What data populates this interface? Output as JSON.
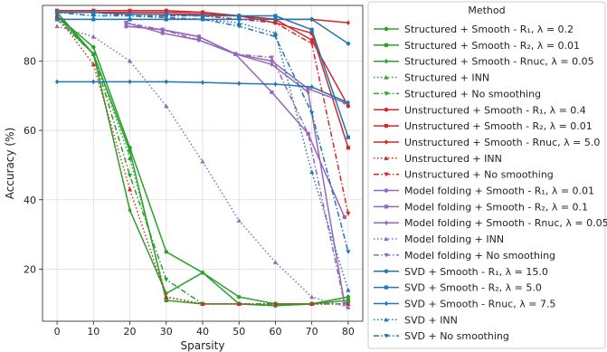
{
  "chart_data": {
    "type": "line",
    "xlabel": "Sparsity",
    "ylabel": "Accuracy (%)",
    "xlim": [
      -4,
      84
    ],
    "ylim": [
      5,
      96
    ],
    "xticks": [
      0,
      10,
      20,
      30,
      40,
      50,
      60,
      70,
      80
    ],
    "yticks": [
      20,
      40,
      60,
      80
    ],
    "grid": true,
    "legend": {
      "title": "Method",
      "placement": "outside-right"
    },
    "series": [
      {
        "name": "Structured + Smooth - R₁, λ = 0.2",
        "color": "#2ca02c",
        "dash": "solid",
        "marker": "circle",
        "x": [
          0,
          10,
          20,
          30,
          40,
          50,
          60,
          70,
          80
        ],
        "y": [
          93,
          84,
          55,
          25,
          19,
          12,
          10,
          10,
          12
        ]
      },
      {
        "name": "Structured + Smooth - R₂, λ = 0.01",
        "color": "#2ca02c",
        "dash": "solid",
        "marker": "square",
        "x": [
          0,
          10,
          20,
          30,
          40,
          50,
          60,
          70,
          80
        ],
        "y": [
          94,
          82,
          54,
          11,
          10,
          10,
          9.5,
          10,
          11
        ]
      },
      {
        "name": "Structured + Smooth - Rnuc, λ = 0.05",
        "color": "#2ca02c",
        "dash": "solid",
        "marker": "diamond",
        "x": [
          0,
          10,
          20,
          30,
          40,
          50,
          60,
          70,
          80
        ],
        "y": [
          93,
          82,
          37,
          13,
          19,
          10,
          9.5,
          10,
          12
        ]
      },
      {
        "name": "Structured + INN",
        "color": "#2ca02c",
        "dash": "dotted",
        "marker": "triangle-up",
        "x": [
          0,
          10,
          20,
          30,
          40,
          50,
          60,
          70,
          80
        ],
        "y": [
          92,
          82,
          52,
          12,
          10,
          10,
          10,
          10,
          10
        ]
      },
      {
        "name": "Structured + No smoothing",
        "color": "#2ca02c",
        "dash": "dashdot",
        "marker": "triangle-down",
        "x": [
          0,
          10,
          20,
          30,
          40,
          50,
          60,
          70,
          80
        ],
        "y": [
          92,
          82,
          47,
          17,
          10,
          10,
          10,
          10,
          10
        ]
      },
      {
        "name": "Unstructured + Smooth - R₁, λ = 0.4",
        "color": "#d62728",
        "dash": "solid",
        "marker": "circle",
        "x": [
          0,
          10,
          20,
          30,
          40,
          50,
          60,
          70,
          80
        ],
        "y": [
          94,
          94,
          94,
          94,
          94,
          93,
          92,
          86,
          67
        ]
      },
      {
        "name": "Unstructured + Smooth - R₂, λ = 0.01",
        "color": "#d62728",
        "dash": "solid",
        "marker": "square",
        "x": [
          0,
          10,
          20,
          30,
          40,
          50,
          60,
          70,
          80
        ],
        "y": [
          94.5,
          94.5,
          94.5,
          94.5,
          94,
          93,
          91,
          88,
          55
        ]
      },
      {
        "name": "Unstructured + Smooth - Rnuc, λ = 5.0",
        "color": "#d62728",
        "dash": "solid",
        "marker": "diamond",
        "x": [
          0,
          10,
          20,
          30,
          40,
          50,
          60,
          70,
          80
        ],
        "y": [
          94,
          94,
          93.5,
          93.5,
          93.5,
          93,
          92,
          92,
          91
        ]
      },
      {
        "name": "Unstructured + INN",
        "color": "#d62728",
        "dash": "dotted",
        "marker": "triangle-up",
        "x": [
          0,
          10,
          20,
          30,
          40,
          50,
          60,
          70,
          80
        ],
        "y": [
          93,
          79,
          43,
          12,
          10,
          10,
          10,
          10,
          10
        ]
      },
      {
        "name": "Unstructured + No smoothing",
        "color": "#d62728",
        "dash": "dashdot",
        "marker": "triangle-down",
        "x": [
          0,
          10,
          20,
          30,
          40,
          50,
          60,
          70,
          80
        ],
        "y": [
          94,
          94,
          93,
          93,
          93,
          92,
          91,
          85,
          36
        ]
      },
      {
        "name": "Model folding + Smooth - R₁, λ = 0.01",
        "color": "#9467bd",
        "dash": "solid",
        "marker": "circle",
        "x": [
          19,
          29,
          39,
          49,
          59,
          69,
          79
        ],
        "y": [
          91,
          88,
          86,
          82,
          80,
          72,
          68
        ]
      },
      {
        "name": "Model folding + Smooth - R₂, λ = 0.1",
        "color": "#9467bd",
        "dash": "solid",
        "marker": "square",
        "x": [
          19,
          29,
          39,
          49,
          59,
          69,
          79
        ],
        "y": [
          90,
          89,
          87,
          82,
          71,
          59,
          35
        ]
      },
      {
        "name": "Model folding + Smooth - Rnuc, λ = 0.05",
        "color": "#9467bd",
        "dash": "solid",
        "marker": "diamond",
        "x": [
          19,
          29,
          39,
          49,
          59,
          69,
          79
        ],
        "y": [
          90,
          89,
          87,
          82,
          79,
          71,
          10
        ]
      },
      {
        "name": "Model folding + INN",
        "color": "#9467bd",
        "dash": "dotted",
        "marker": "triangle-up",
        "x": [
          0,
          10,
          20,
          30,
          40,
          50,
          60,
          70,
          80
        ],
        "y": [
          90,
          87,
          80,
          67,
          51,
          34,
          22,
          12,
          9
        ]
      },
      {
        "name": "Model folding + No smoothing",
        "color": "#9467bd",
        "dash": "dashdot",
        "marker": "triangle-down",
        "x": [
          19,
          29,
          39,
          49,
          59,
          69,
          79
        ],
        "y": [
          91,
          89,
          86,
          82,
          81,
          59,
          10
        ]
      },
      {
        "name": "SVD + Smooth - R₁, λ = 15.0",
        "color": "#1f77b4",
        "dash": "solid",
        "marker": "circle",
        "x": [
          0,
          10,
          20,
          30,
          40,
          50,
          60,
          70,
          80
        ],
        "y": [
          92,
          92,
          92,
          92,
          92,
          92,
          92,
          92,
          85
        ]
      },
      {
        "name": "SVD + Smooth - R₂, λ = 5.0",
        "color": "#1f77b4",
        "dash": "solid",
        "marker": "square",
        "x": [
          0,
          10,
          20,
          30,
          40,
          50,
          60,
          70,
          80
        ],
        "y": [
          94,
          94,
          93.5,
          93.5,
          93,
          93,
          93,
          89,
          58
        ]
      },
      {
        "name": "SVD + Smooth - Rnuc, λ = 7.5",
        "color": "#1f77b4",
        "dash": "solid",
        "marker": "diamond",
        "x": [
          0,
          10,
          20,
          30,
          40,
          50,
          60,
          70,
          80
        ],
        "y": [
          74,
          74,
          74,
          74,
          73.8,
          73.5,
          73.3,
          72.5,
          68
        ]
      },
      {
        "name": "SVD + INN",
        "color": "#1f77b4",
        "dash": "dotted",
        "marker": "triangle-up",
        "x": [
          0,
          10,
          20,
          30,
          40,
          50,
          60,
          70,
          80
        ],
        "y": [
          92,
          92,
          92,
          92,
          92,
          91,
          88,
          48,
          14
        ]
      },
      {
        "name": "SVD + No smoothing",
        "color": "#1f77b4",
        "dash": "dashdot",
        "marker": "triangle-down",
        "x": [
          0,
          10,
          20,
          30,
          40,
          50,
          60,
          70,
          80
        ],
        "y": [
          94,
          93,
          93,
          92.5,
          92,
          90,
          87,
          65,
          25
        ]
      }
    ]
  }
}
